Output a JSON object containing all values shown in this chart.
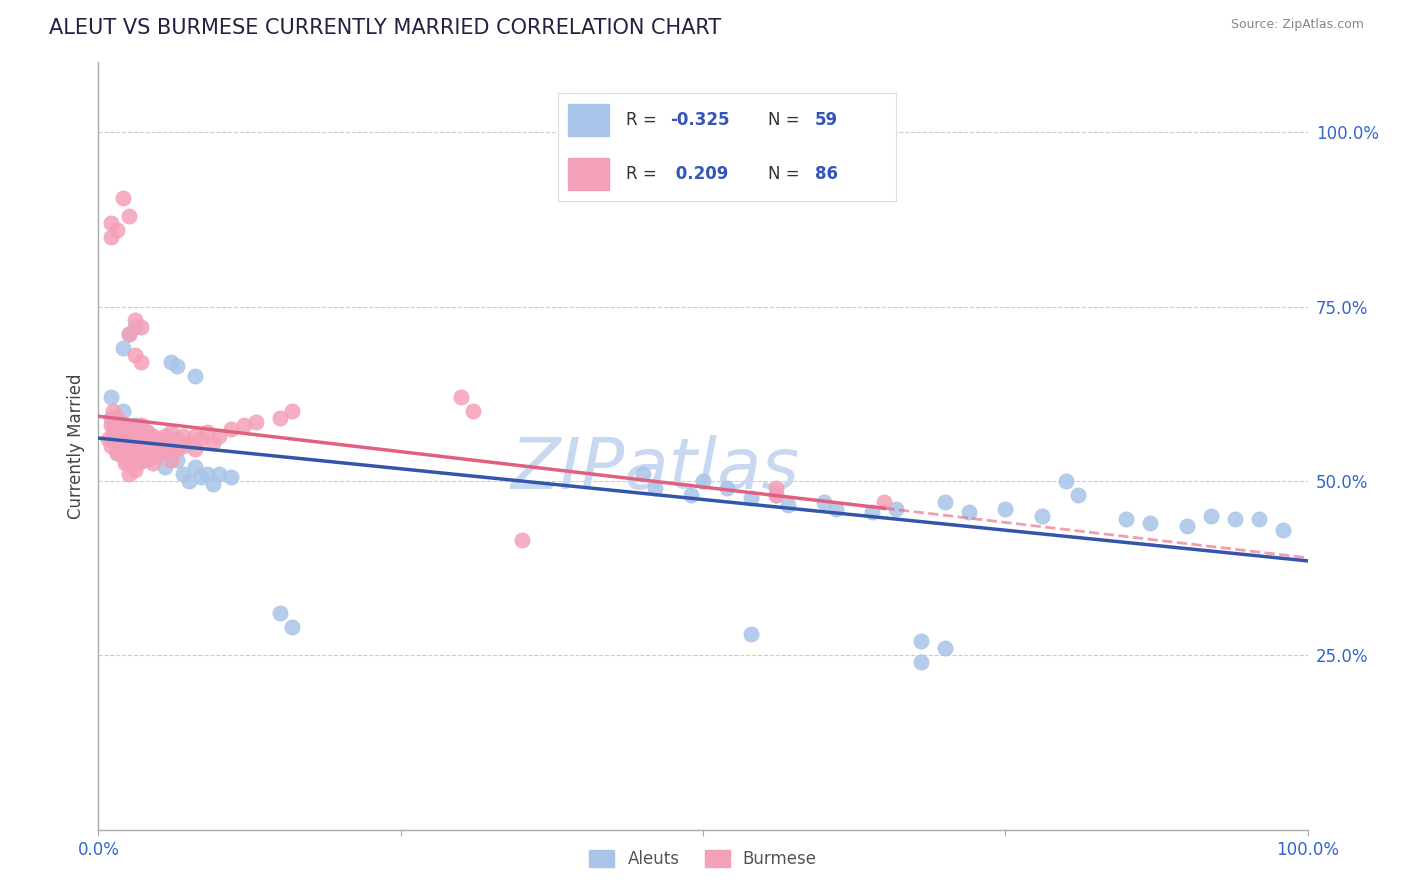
{
  "title": "ALEUT VS BURMESE CURRENTLY MARRIED CORRELATION CHART",
  "source": "Source: ZipAtlas.com",
  "ylabel": "Currently Married",
  "aleuts_R": -0.325,
  "aleuts_N": 59,
  "burmese_R": 0.209,
  "burmese_N": 86,
  "aleuts_color": "#a8c4e8",
  "burmese_color": "#f4a0b8",
  "aleuts_line_color": "#3355aa",
  "burmese_line_color": "#e06080",
  "watermark_text": "ZIPatlas",
  "watermark_color": "#c8d8f0",
  "legend_R_color": "#3355bb",
  "legend_N_color": "#3355bb",
  "ytick_vals": [
    0.25,
    0.5,
    0.75,
    1.0
  ],
  "ytick_labels": [
    "25.0%",
    "50.0%",
    "75.0%",
    "100.0%"
  ],
  "title_color": "#222244",
  "source_color": "#888888",
  "ylabel_color": "#444444",
  "xmin": 0.0,
  "xmax": 1.0,
  "ymin": 0.0,
  "ymax": 1.1,
  "aleuts_scatter": [
    [
      0.01,
      0.62
    ],
    [
      0.01,
      0.59
    ],
    [
      0.012,
      0.56
    ],
    [
      0.015,
      0.57
    ],
    [
      0.015,
      0.54
    ],
    [
      0.018,
      0.58
    ],
    [
      0.02,
      0.6
    ],
    [
      0.022,
      0.56
    ],
    [
      0.022,
      0.53
    ],
    [
      0.025,
      0.57
    ],
    [
      0.025,
      0.54
    ],
    [
      0.028,
      0.555
    ],
    [
      0.03,
      0.58
    ],
    [
      0.03,
      0.56
    ],
    [
      0.032,
      0.54
    ],
    [
      0.033,
      0.55
    ],
    [
      0.035,
      0.565
    ],
    [
      0.037,
      0.53
    ],
    [
      0.038,
      0.545
    ],
    [
      0.04,
      0.57
    ],
    [
      0.042,
      0.555
    ],
    [
      0.045,
      0.54
    ],
    [
      0.048,
      0.54
    ],
    [
      0.05,
      0.555
    ],
    [
      0.055,
      0.52
    ],
    [
      0.06,
      0.54
    ],
    [
      0.065,
      0.53
    ],
    [
      0.07,
      0.51
    ],
    [
      0.075,
      0.5
    ],
    [
      0.08,
      0.52
    ],
    [
      0.085,
      0.505
    ],
    [
      0.09,
      0.51
    ],
    [
      0.095,
      0.495
    ],
    [
      0.1,
      0.51
    ],
    [
      0.11,
      0.505
    ],
    [
      0.02,
      0.69
    ],
    [
      0.025,
      0.71
    ],
    [
      0.03,
      0.72
    ],
    [
      0.06,
      0.67
    ],
    [
      0.065,
      0.665
    ],
    [
      0.08,
      0.65
    ],
    [
      0.45,
      0.51
    ],
    [
      0.46,
      0.49
    ],
    [
      0.49,
      0.48
    ],
    [
      0.5,
      0.5
    ],
    [
      0.52,
      0.49
    ],
    [
      0.54,
      0.475
    ],
    [
      0.56,
      0.48
    ],
    [
      0.57,
      0.465
    ],
    [
      0.6,
      0.47
    ],
    [
      0.61,
      0.46
    ],
    [
      0.64,
      0.455
    ],
    [
      0.66,
      0.46
    ],
    [
      0.7,
      0.47
    ],
    [
      0.72,
      0.455
    ],
    [
      0.75,
      0.46
    ],
    [
      0.78,
      0.45
    ],
    [
      0.8,
      0.5
    ],
    [
      0.81,
      0.48
    ],
    [
      0.85,
      0.445
    ],
    [
      0.87,
      0.44
    ],
    [
      0.9,
      0.435
    ],
    [
      0.92,
      0.45
    ],
    [
      0.94,
      0.445
    ],
    [
      0.96,
      0.445
    ],
    [
      0.98,
      0.43
    ],
    [
      0.15,
      0.31
    ],
    [
      0.16,
      0.29
    ],
    [
      0.54,
      0.28
    ],
    [
      0.68,
      0.27
    ],
    [
      0.68,
      0.24
    ],
    [
      0.7,
      0.26
    ]
  ],
  "burmese_scatter": [
    [
      0.008,
      0.56
    ],
    [
      0.01,
      0.58
    ],
    [
      0.01,
      0.55
    ],
    [
      0.012,
      0.57
    ],
    [
      0.012,
      0.6
    ],
    [
      0.013,
      0.585
    ],
    [
      0.015,
      0.59
    ],
    [
      0.015,
      0.56
    ],
    [
      0.015,
      0.54
    ],
    [
      0.016,
      0.575
    ],
    [
      0.017,
      0.555
    ],
    [
      0.018,
      0.58
    ],
    [
      0.018,
      0.545
    ],
    [
      0.02,
      0.57
    ],
    [
      0.02,
      0.555
    ],
    [
      0.02,
      0.535
    ],
    [
      0.022,
      0.565
    ],
    [
      0.022,
      0.545
    ],
    [
      0.022,
      0.525
    ],
    [
      0.023,
      0.56
    ],
    [
      0.025,
      0.575
    ],
    [
      0.025,
      0.55
    ],
    [
      0.025,
      0.53
    ],
    [
      0.025,
      0.51
    ],
    [
      0.027,
      0.565
    ],
    [
      0.028,
      0.545
    ],
    [
      0.028,
      0.525
    ],
    [
      0.03,
      0.57
    ],
    [
      0.03,
      0.555
    ],
    [
      0.03,
      0.535
    ],
    [
      0.03,
      0.515
    ],
    [
      0.032,
      0.56
    ],
    [
      0.033,
      0.545
    ],
    [
      0.033,
      0.525
    ],
    [
      0.035,
      0.58
    ],
    [
      0.035,
      0.555
    ],
    [
      0.035,
      0.535
    ],
    [
      0.037,
      0.56
    ],
    [
      0.037,
      0.545
    ],
    [
      0.038,
      0.53
    ],
    [
      0.04,
      0.57
    ],
    [
      0.04,
      0.55
    ],
    [
      0.04,
      0.53
    ],
    [
      0.042,
      0.555
    ],
    [
      0.042,
      0.54
    ],
    [
      0.045,
      0.565
    ],
    [
      0.045,
      0.545
    ],
    [
      0.045,
      0.525
    ],
    [
      0.048,
      0.555
    ],
    [
      0.048,
      0.535
    ],
    [
      0.05,
      0.56
    ],
    [
      0.05,
      0.54
    ],
    [
      0.052,
      0.55
    ],
    [
      0.055,
      0.565
    ],
    [
      0.055,
      0.545
    ],
    [
      0.06,
      0.57
    ],
    [
      0.06,
      0.55
    ],
    [
      0.06,
      0.53
    ],
    [
      0.065,
      0.56
    ],
    [
      0.065,
      0.545
    ],
    [
      0.07,
      0.565
    ],
    [
      0.07,
      0.55
    ],
    [
      0.075,
      0.555
    ],
    [
      0.08,
      0.565
    ],
    [
      0.08,
      0.545
    ],
    [
      0.085,
      0.56
    ],
    [
      0.09,
      0.57
    ],
    [
      0.095,
      0.555
    ],
    [
      0.1,
      0.565
    ],
    [
      0.11,
      0.575
    ],
    [
      0.12,
      0.58
    ],
    [
      0.13,
      0.585
    ],
    [
      0.15,
      0.59
    ],
    [
      0.16,
      0.6
    ],
    [
      0.01,
      0.85
    ],
    [
      0.01,
      0.87
    ],
    [
      0.015,
      0.86
    ],
    [
      0.025,
      0.88
    ],
    [
      0.02,
      0.905
    ],
    [
      0.025,
      0.71
    ],
    [
      0.03,
      0.73
    ],
    [
      0.035,
      0.72
    ],
    [
      0.03,
      0.68
    ],
    [
      0.035,
      0.67
    ],
    [
      0.3,
      0.62
    ],
    [
      0.31,
      0.6
    ],
    [
      0.35,
      0.415
    ],
    [
      0.56,
      0.49
    ],
    [
      0.56,
      0.48
    ],
    [
      0.65,
      0.47
    ]
  ]
}
